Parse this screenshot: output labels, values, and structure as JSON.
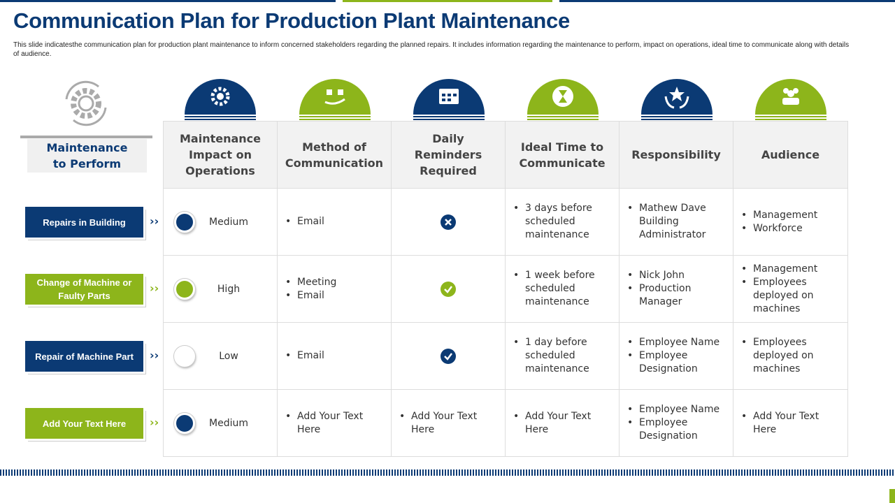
{
  "title": "Communication Plan for Production Plant Maintenance",
  "description": "This slide indicatesthe communication plan for production plant maintenance to inform concerned stakeholders regarding the planned repairs. It includes information regarding the maintenance to perform, impact on operations, ideal time to communicate along with details of audience.",
  "row_header": "Maintenance to Perform",
  "columns": [
    "Maintenance Impact on Operations",
    "Method of Communication",
    "Daily Reminders Required",
    "Ideal Time to Communicate",
    "Responsibility",
    "Audience"
  ],
  "rows": [
    {
      "task": "Repairs in Building",
      "impact": "Medium",
      "method": [
        "Email"
      ],
      "reminders": [],
      "time": [
        "3 days before scheduled maintenance"
      ],
      "responsibility": [
        "Mathew Dave Building Administrator"
      ],
      "audience": [
        "Management",
        "Workforce"
      ]
    },
    {
      "task": "Change of Machine or Faulty Parts",
      "impact": "High",
      "method": [
        "Meeting",
        "Email"
      ],
      "reminders": [],
      "time": [
        "1 week before scheduled maintenance"
      ],
      "responsibility": [
        "Nick John",
        "Production Manager"
      ],
      "audience": [
        "Management",
        "Employees deployed on machines"
      ]
    },
    {
      "task": "Repair of Machine Part",
      "impact": "Low",
      "method": [
        "Email"
      ],
      "reminders": [],
      "time": [
        "1 day before scheduled maintenance"
      ],
      "responsibility": [
        "Employee Name",
        "Employee Designation"
      ],
      "audience": [
        "Employees deployed on machines"
      ]
    },
    {
      "task": "Add Your Text Here",
      "impact": "Medium",
      "method": [
        "Add Your Text Here"
      ],
      "reminders": [
        "Add Your Text Here"
      ],
      "time": [
        "Add Your Text Here"
      ],
      "responsibility": [
        "Employee Name",
        "Employee Designation"
      ],
      "audience": [
        "Add Your Text Here"
      ]
    }
  ]
}
